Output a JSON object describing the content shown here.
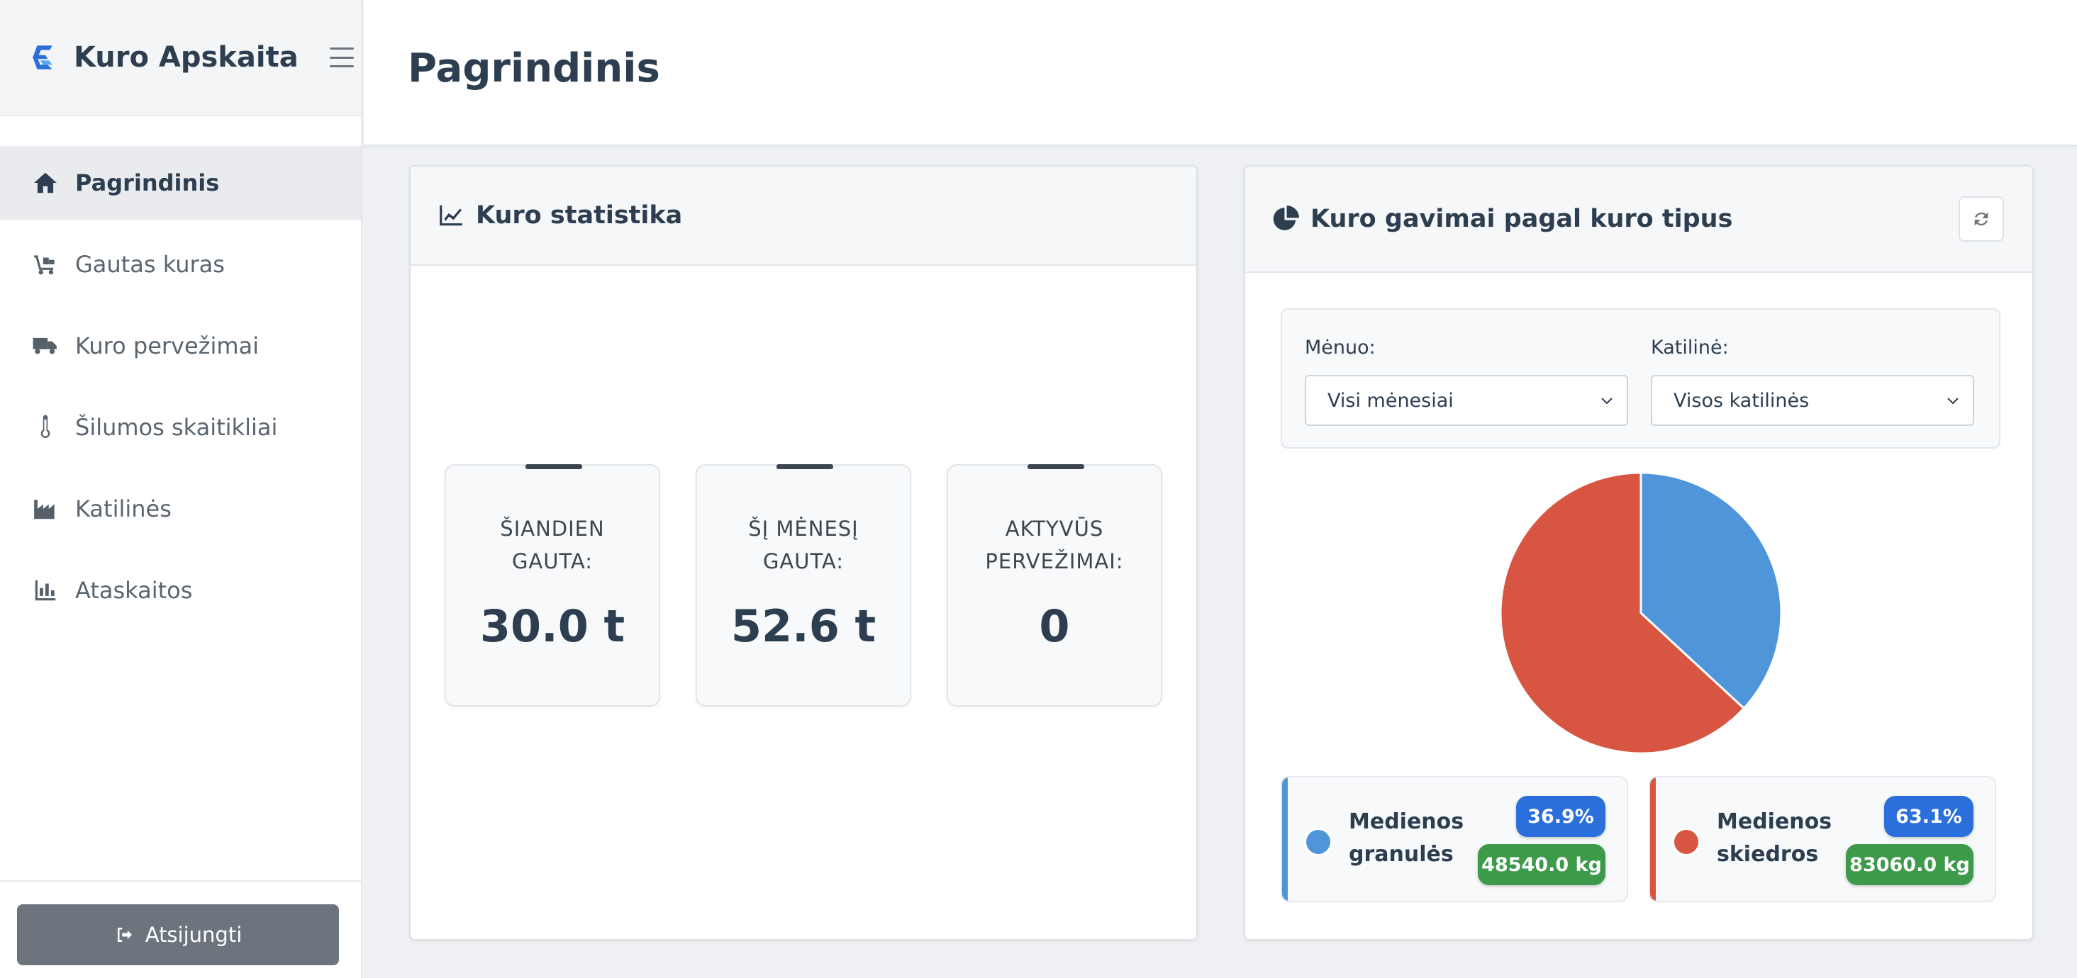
{
  "app": {
    "title": "Kuro Apskaita"
  },
  "sidebar": {
    "items": [
      {
        "label": "Pagrindinis",
        "icon": "home-icon",
        "active": true
      },
      {
        "label": "Gautas kuras",
        "icon": "truck-loading-icon",
        "active": false
      },
      {
        "label": "Kuro pervežimai",
        "icon": "truck-icon",
        "active": false
      },
      {
        "label": "Šilumos skaitikliai",
        "icon": "thermometer-icon",
        "active": false
      },
      {
        "label": "Katilinės",
        "icon": "industry-icon",
        "active": false
      },
      {
        "label": "Ataskaitos",
        "icon": "bar-chart-icon",
        "active": false
      }
    ],
    "logout_label": "Atsijungti"
  },
  "header": {
    "title": "Pagrindinis"
  },
  "stats_card": {
    "title": "Kuro statistika",
    "stats": [
      {
        "label": "ŠIANDIEN GAUTA:",
        "value": "30.0 t"
      },
      {
        "label": "ŠĮ MĖNESĮ GAUTA:",
        "value": "52.6 t"
      },
      {
        "label": "AKTYVŪS PERVEŽIMAI:",
        "value": "0"
      }
    ]
  },
  "fuel_card": {
    "title": "Kuro gavimai pagal kuro tipus",
    "filters": {
      "month_label": "Mėnuo:",
      "month_value": "Visi mėnesiai",
      "boiler_label": "Katilinė:",
      "boiler_value": "Visos katilinės"
    },
    "legend": [
      {
        "name": "Medienos granulės",
        "percent": "36.9%",
        "amount": "48540.0 kg",
        "color": "#4f95d9"
      },
      {
        "name": "Medienos skiedros",
        "percent": "63.1%",
        "amount": "83060.0 kg",
        "color": "#d85641"
      }
    ]
  },
  "chart_data": {
    "type": "pie",
    "categories": [
      "Medienos granulės",
      "Medienos skiedros"
    ],
    "values": [
      48540.0,
      83060.0
    ],
    "colors": [
      "#4f95d9",
      "#d85641"
    ]
  }
}
